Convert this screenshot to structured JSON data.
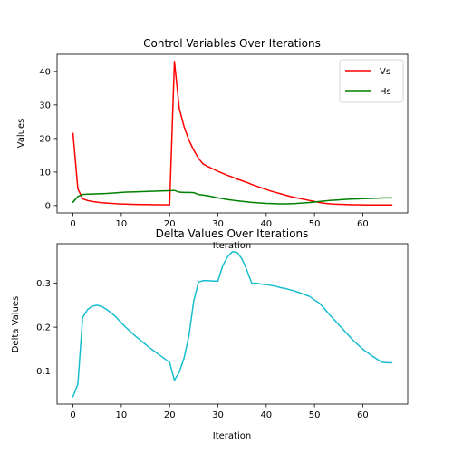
{
  "chart_data": [
    {
      "type": "line",
      "title": "Control Variables Over Iterations",
      "xlabel": "Iteration",
      "ylabel": "Values",
      "xlim": [
        -3.3,
        69.3
      ],
      "ylim": [
        -2.2,
        45.1
      ],
      "xticks": [
        0,
        10,
        20,
        30,
        40,
        50,
        60
      ],
      "yticks": [
        0,
        10,
        20,
        30,
        40
      ],
      "grid": false,
      "legend_position": "top-right",
      "series": [
        {
          "name": "Vs",
          "color": "#ff0000",
          "x": [
            0,
            1,
            2,
            3,
            4,
            5,
            6,
            7,
            8,
            9,
            10,
            11,
            12,
            13,
            14,
            15,
            16,
            17,
            18,
            19,
            20,
            21,
            22,
            23,
            24,
            25,
            26,
            27,
            28,
            29,
            30,
            31,
            32,
            33,
            34,
            35,
            36,
            37,
            38,
            39,
            40,
            41,
            42,
            43,
            44,
            45,
            46,
            47,
            48,
            49,
            50,
            51,
            52,
            53,
            54,
            55,
            56,
            57,
            58,
            59,
            60,
            61,
            62,
            63,
            64,
            65,
            66
          ],
          "y": [
            21.5,
            5.0,
            2.0,
            1.5,
            1.2,
            1.0,
            0.85,
            0.75,
            0.65,
            0.55,
            0.48,
            0.42,
            0.38,
            0.34,
            0.31,
            0.29,
            0.27,
            0.25,
            0.23,
            0.22,
            0.21,
            43.0,
            29.0,
            23.5,
            19.5,
            16.5,
            14.0,
            12.3,
            11.6,
            10.9,
            10.2,
            9.6,
            9.0,
            8.5,
            7.9,
            7.4,
            6.9,
            6.3,
            5.8,
            5.3,
            4.8,
            4.3,
            3.9,
            3.5,
            3.1,
            2.7,
            2.4,
            2.1,
            1.8,
            1.5,
            1.2,
            0.9,
            0.7,
            0.55,
            0.45,
            0.38,
            0.32,
            0.28,
            0.25,
            0.22,
            0.2,
            0.18,
            0.17,
            0.16,
            0.15,
            0.15,
            0.15
          ]
        },
        {
          "name": "Hs",
          "color": "#008000",
          "x": [
            0,
            1,
            2,
            3,
            4,
            5,
            6,
            7,
            8,
            9,
            10,
            11,
            12,
            13,
            14,
            15,
            16,
            17,
            18,
            19,
            20,
            21,
            22,
            23,
            24,
            25,
            26,
            27,
            28,
            29,
            30,
            31,
            32,
            33,
            34,
            35,
            36,
            37,
            38,
            39,
            40,
            41,
            42,
            43,
            44,
            45,
            46,
            47,
            48,
            49,
            50,
            51,
            52,
            53,
            54,
            55,
            56,
            57,
            58,
            59,
            60,
            61,
            62,
            63,
            64,
            65,
            66
          ],
          "y": [
            1.0,
            2.7,
            3.3,
            3.4,
            3.45,
            3.5,
            3.55,
            3.6,
            3.7,
            3.8,
            3.9,
            4.0,
            4.05,
            4.1,
            4.15,
            4.2,
            4.25,
            4.3,
            4.35,
            4.4,
            4.45,
            4.5,
            4.0,
            3.9,
            3.9,
            3.85,
            3.3,
            3.1,
            2.9,
            2.6,
            2.3,
            2.05,
            1.8,
            1.6,
            1.4,
            1.25,
            1.1,
            0.95,
            0.85,
            0.75,
            0.65,
            0.6,
            0.55,
            0.52,
            0.52,
            0.55,
            0.6,
            0.7,
            0.8,
            0.9,
            1.05,
            1.2,
            1.35,
            1.5,
            1.6,
            1.7,
            1.8,
            1.9,
            1.95,
            2.0,
            2.05,
            2.1,
            2.15,
            2.2,
            2.25,
            2.3,
            2.3
          ]
        }
      ]
    },
    {
      "type": "line",
      "title": "Delta Values Over Iterations",
      "xlabel": "Iteration",
      "ylabel": "Delta Values",
      "xlim": [
        -3.3,
        69.3
      ],
      "ylim": [
        0.025,
        0.39
      ],
      "xticks": [
        0,
        10,
        20,
        30,
        40,
        50,
        60
      ],
      "yticks": [
        0.1,
        0.2,
        0.3
      ],
      "grid": false,
      "series": [
        {
          "color": "#17becf",
          "x": [
            0,
            1,
            2,
            3,
            4,
            5,
            6,
            7,
            8,
            9,
            10,
            11,
            12,
            13,
            14,
            15,
            16,
            17,
            18,
            19,
            20,
            21,
            22,
            23,
            24,
            25,
            26,
            27,
            28,
            29,
            30,
            31,
            32,
            33,
            34,
            35,
            36,
            37,
            38,
            39,
            40,
            41,
            42,
            43,
            44,
            45,
            46,
            47,
            48,
            49,
            50,
            51,
            52,
            53,
            54,
            55,
            56,
            57,
            58,
            59,
            60,
            61,
            62,
            63,
            64,
            65,
            66
          ],
          "y": [
            0.042,
            0.07,
            0.222,
            0.24,
            0.248,
            0.25,
            0.247,
            0.24,
            0.232,
            0.222,
            0.21,
            0.199,
            0.189,
            0.179,
            0.17,
            0.161,
            0.152,
            0.144,
            0.136,
            0.128,
            0.12,
            0.079,
            0.098,
            0.13,
            0.18,
            0.26,
            0.303,
            0.306,
            0.306,
            0.305,
            0.305,
            0.34,
            0.36,
            0.372,
            0.37,
            0.355,
            0.33,
            0.3,
            0.3,
            0.298,
            0.297,
            0.295,
            0.293,
            0.29,
            0.288,
            0.285,
            0.282,
            0.278,
            0.274,
            0.27,
            0.262,
            0.255,
            0.243,
            0.23,
            0.218,
            0.206,
            0.194,
            0.182,
            0.17,
            0.16,
            0.15,
            0.142,
            0.134,
            0.127,
            0.12,
            0.119,
            0.119
          ]
        }
      ]
    }
  ]
}
